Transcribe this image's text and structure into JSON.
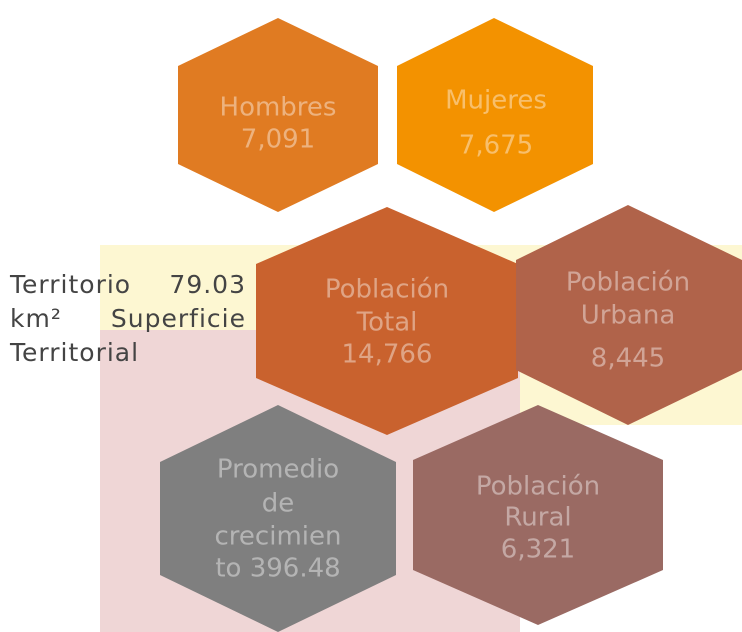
{
  "side_text": "Territorio 79.03 km² Superficie Territorial",
  "hexagons": [
    {
      "lines": [
        "Hombres",
        "7,091"
      ]
    },
    {
      "lines": [
        "Mujeres",
        "7,675"
      ]
    },
    {
      "lines": [
        "Población",
        "Total",
        "14,766"
      ]
    },
    {
      "lines": [
        "Población",
        "Urbana",
        "8,445"
      ]
    },
    {
      "lines": [
        "Promedio",
        "de",
        "crecimien",
        "to 396.48"
      ]
    },
    {
      "lines": [
        "Población",
        "Rural",
        "6,321"
      ]
    }
  ]
}
